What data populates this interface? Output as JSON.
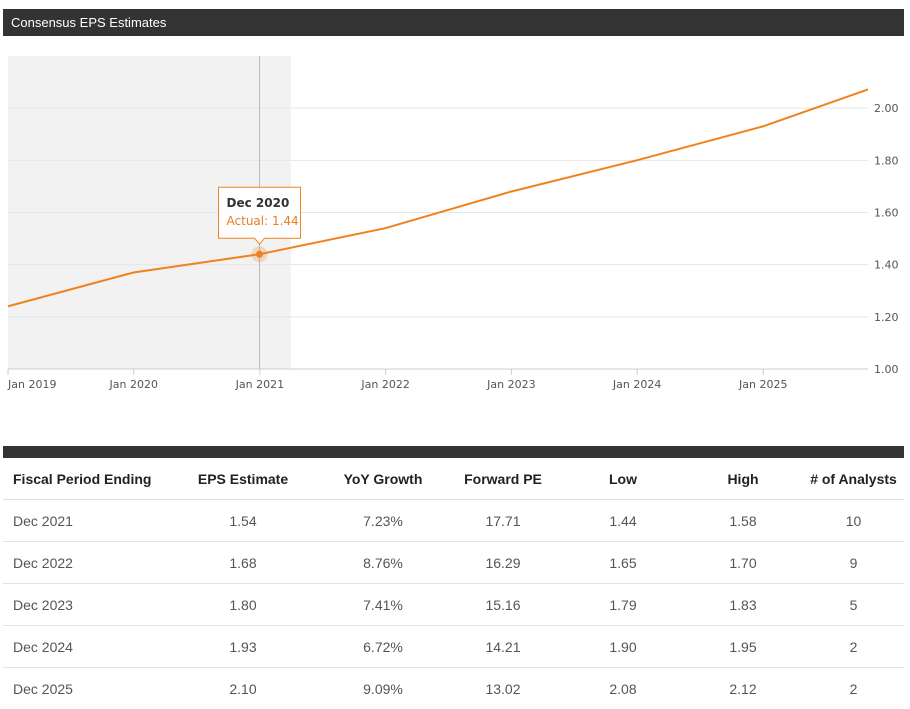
{
  "header": {
    "title": "Consensus EPS Estimates"
  },
  "chart_data": {
    "type": "line",
    "x_ticks": [
      "Jan 2019",
      "Jan 2020",
      "Jan 2021",
      "Jan 2022",
      "Jan 2023",
      "Jan 2024",
      "Jan 2025"
    ],
    "y_ticks": [
      "2.00",
      "1.80",
      "1.60",
      "1.40",
      "1.20",
      "1.00"
    ],
    "ylim": [
      1.0,
      2.2
    ],
    "xlim": [
      "2019-01-01",
      "2025-11-01"
    ],
    "shaded_until": "2021-04-01",
    "series": [
      {
        "color": "#f0821e",
        "points": [
          {
            "x": "2018-12-31",
            "y": 1.24
          },
          {
            "x": "2019-12-31",
            "y": 1.37
          },
          {
            "x": "2020-12-31",
            "y": 1.44
          },
          {
            "x": "2021-12-31",
            "y": 1.54
          },
          {
            "x": "2022-12-31",
            "y": 1.68
          },
          {
            "x": "2023-12-31",
            "y": 1.8
          },
          {
            "x": "2024-12-31",
            "y": 1.93
          },
          {
            "x": "2025-12-31",
            "y": 2.1
          }
        ]
      }
    ],
    "tooltip": {
      "title": "Dec 2020",
      "label": "Actual: 1.44",
      "x": "2020-12-31",
      "y": 1.44
    }
  },
  "table": {
    "headers": [
      "Fiscal Period Ending",
      "EPS Estimate",
      "YoY Growth",
      "Forward PE",
      "Low",
      "High",
      "# of Analysts"
    ],
    "rows": [
      [
        "Dec 2021",
        "1.54",
        "7.23%",
        "17.71",
        "1.44",
        "1.58",
        "10"
      ],
      [
        "Dec 2022",
        "1.68",
        "8.76%",
        "16.29",
        "1.65",
        "1.70",
        "9"
      ],
      [
        "Dec 2023",
        "1.80",
        "7.41%",
        "15.16",
        "1.79",
        "1.83",
        "5"
      ],
      [
        "Dec 2024",
        "1.93",
        "6.72%",
        "14.21",
        "1.90",
        "1.95",
        "2"
      ],
      [
        "Dec 2025",
        "2.10",
        "9.09%",
        "13.02",
        "2.08",
        "2.12",
        "2"
      ]
    ]
  }
}
